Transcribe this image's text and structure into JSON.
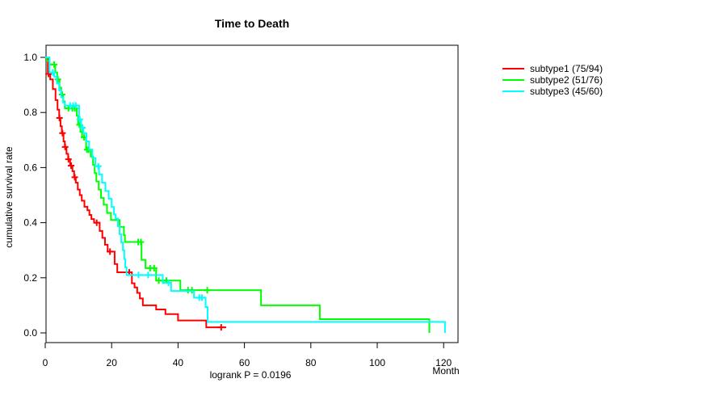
{
  "chart_data": {
    "type": "line",
    "subtype": "kaplan-meier-step-curves",
    "title": "Time to Death",
    "xlabel": "Month",
    "ylabel": "cumulative survival rate",
    "annotation": "logrank P = 0.0196",
    "xlim": [
      0,
      126
    ],
    "ylim": [
      0,
      1.0
    ],
    "x_ticks": [
      0,
      20,
      40,
      60,
      80,
      100,
      120
    ],
    "y_ticks": [
      0.0,
      0.2,
      0.4,
      0.6,
      0.8,
      1.0
    ],
    "y_tick_labels": [
      "0.0",
      "0.2",
      "0.4",
      "0.6",
      "0.8",
      "1.0"
    ],
    "grid": false,
    "legend_position": "right-outside",
    "series": [
      {
        "name": "subtype1 (75/94)",
        "color": "#FF0000",
        "end": 54.5,
        "steps": [
          [
            0,
            1.0
          ],
          [
            0.8,
            0.94
          ],
          [
            1.5,
            0.92
          ],
          [
            2.3,
            0.885
          ],
          [
            3.1,
            0.845
          ],
          [
            3.7,
            0.81
          ],
          [
            4.2,
            0.78
          ],
          [
            4.6,
            0.75
          ],
          [
            5.0,
            0.725
          ],
          [
            5.5,
            0.695
          ],
          [
            5.9,
            0.675
          ],
          [
            6.4,
            0.65
          ],
          [
            6.9,
            0.63
          ],
          [
            7.5,
            0.607
          ],
          [
            8.2,
            0.587
          ],
          [
            8.7,
            0.565
          ],
          [
            9.2,
            0.545
          ],
          [
            9.8,
            0.52
          ],
          [
            10.4,
            0.5
          ],
          [
            11.0,
            0.48
          ],
          [
            11.8,
            0.458
          ],
          [
            12.7,
            0.445
          ],
          [
            13.3,
            0.428
          ],
          [
            13.9,
            0.413
          ],
          [
            14.7,
            0.4
          ],
          [
            16.4,
            0.37
          ],
          [
            17.2,
            0.345
          ],
          [
            18.0,
            0.32
          ],
          [
            18.8,
            0.295
          ],
          [
            20.9,
            0.25
          ],
          [
            21.7,
            0.22
          ],
          [
            26.1,
            0.18
          ],
          [
            26.9,
            0.165
          ],
          [
            27.7,
            0.145
          ],
          [
            28.5,
            0.125
          ],
          [
            29.4,
            0.1
          ],
          [
            33.4,
            0.085
          ],
          [
            36.2,
            0.068
          ],
          [
            40.0,
            0.045
          ],
          [
            48.5,
            0.02
          ]
        ],
        "censors": [
          [
            1.0,
            0.94
          ],
          [
            4.3,
            0.78
          ],
          [
            5.2,
            0.725
          ],
          [
            6.0,
            0.675
          ],
          [
            7.0,
            0.63
          ],
          [
            7.8,
            0.607
          ],
          [
            8.9,
            0.565
          ],
          [
            15.5,
            0.4
          ],
          [
            19.5,
            0.295
          ],
          [
            25.3,
            0.22
          ],
          [
            53.0,
            0.02
          ]
        ]
      },
      {
        "name": "subtype2 (51/76)",
        "color": "#00FF00",
        "end": 115.7,
        "steps": [
          [
            0,
            1.0
          ],
          [
            0.5,
            0.987
          ],
          [
            1.3,
            0.974
          ],
          [
            3.0,
            0.945
          ],
          [
            3.6,
            0.92
          ],
          [
            4.3,
            0.89
          ],
          [
            4.8,
            0.865
          ],
          [
            5.4,
            0.84
          ],
          [
            5.9,
            0.815
          ],
          [
            9.5,
            0.788
          ],
          [
            9.9,
            0.755
          ],
          [
            10.6,
            0.73
          ],
          [
            11.1,
            0.71
          ],
          [
            12.3,
            0.665
          ],
          [
            13.7,
            0.64
          ],
          [
            14.4,
            0.61
          ],
          [
            14.9,
            0.58
          ],
          [
            15.4,
            0.55
          ],
          [
            16.1,
            0.52
          ],
          [
            16.8,
            0.49
          ],
          [
            17.6,
            0.465
          ],
          [
            18.6,
            0.435
          ],
          [
            19.8,
            0.41
          ],
          [
            22.4,
            0.385
          ],
          [
            23.7,
            0.355
          ],
          [
            24.0,
            0.33
          ],
          [
            29.0,
            0.265
          ],
          [
            30.2,
            0.235
          ],
          [
            33.4,
            0.19
          ],
          [
            40.7,
            0.155
          ],
          [
            65.0,
            0.1
          ],
          [
            82.7,
            0.05
          ],
          [
            115.7,
            0.0
          ]
        ],
        "censors": [
          [
            2.7,
            0.974
          ],
          [
            3.8,
            0.92
          ],
          [
            5.1,
            0.865
          ],
          [
            7.0,
            0.815
          ],
          [
            8.2,
            0.815
          ],
          [
            8.9,
            0.815
          ],
          [
            10.3,
            0.755
          ],
          [
            11.7,
            0.71
          ],
          [
            12.6,
            0.665
          ],
          [
            13.1,
            0.665
          ],
          [
            28.0,
            0.33
          ],
          [
            28.8,
            0.33
          ],
          [
            31.6,
            0.235
          ],
          [
            32.8,
            0.235
          ],
          [
            34.2,
            0.19
          ],
          [
            35.4,
            0.19
          ],
          [
            36.5,
            0.19
          ],
          [
            43.0,
            0.155
          ],
          [
            44.2,
            0.155
          ],
          [
            48.8,
            0.155
          ]
        ]
      },
      {
        "name": "subtype3 (45/60)",
        "color": "#00FFFF",
        "end": 120.4,
        "steps": [
          [
            0,
            1.0
          ],
          [
            1.3,
            0.945
          ],
          [
            2.7,
            0.93
          ],
          [
            3.5,
            0.905
          ],
          [
            4.2,
            0.88
          ],
          [
            4.8,
            0.855
          ],
          [
            5.4,
            0.836
          ],
          [
            5.9,
            0.825
          ],
          [
            10.2,
            0.775
          ],
          [
            10.8,
            0.745
          ],
          [
            11.5,
            0.725
          ],
          [
            12.4,
            0.695
          ],
          [
            13.2,
            0.665
          ],
          [
            14.2,
            0.635
          ],
          [
            15.1,
            0.605
          ],
          [
            16.2,
            0.575
          ],
          [
            17.1,
            0.545
          ],
          [
            18.1,
            0.515
          ],
          [
            19.1,
            0.487
          ],
          [
            20.0,
            0.457
          ],
          [
            20.7,
            0.43
          ],
          [
            21.2,
            0.415
          ],
          [
            21.9,
            0.387
          ],
          [
            22.4,
            0.358
          ],
          [
            22.9,
            0.328
          ],
          [
            23.4,
            0.3
          ],
          [
            23.8,
            0.268
          ],
          [
            24.1,
            0.238
          ],
          [
            24.5,
            0.21
          ],
          [
            35.4,
            0.182
          ],
          [
            37.9,
            0.152
          ],
          [
            44.8,
            0.128
          ],
          [
            48.3,
            0.094
          ],
          [
            48.9,
            0.04
          ],
          [
            120.4,
            0.0
          ]
        ],
        "censors": [
          [
            2.3,
            0.945
          ],
          [
            7.5,
            0.825
          ],
          [
            8.4,
            0.825
          ],
          [
            9.2,
            0.825
          ],
          [
            10.4,
            0.775
          ],
          [
            11.2,
            0.745
          ],
          [
            16.0,
            0.605
          ],
          [
            28.1,
            0.21
          ],
          [
            31.0,
            0.21
          ],
          [
            37.1,
            0.182
          ],
          [
            46.4,
            0.128
          ],
          [
            47.2,
            0.128
          ]
        ]
      }
    ]
  }
}
